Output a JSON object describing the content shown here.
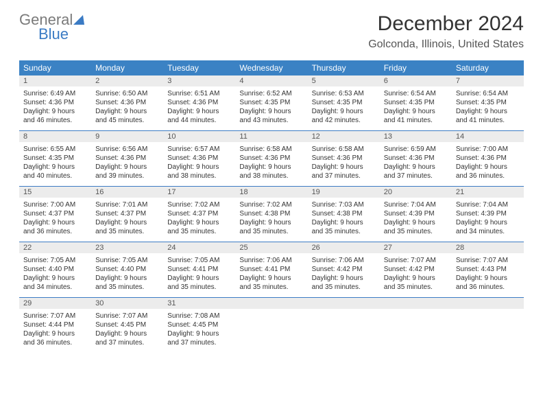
{
  "logo": {
    "word1": "General",
    "word2": "Blue"
  },
  "title": "December 2024",
  "location": "Golconda, Illinois, United States",
  "colors": {
    "header_bg": "#3b82c4",
    "header_text": "#ffffff",
    "daynum_bg": "#ececec",
    "border": "#3b7bc4",
    "logo_gray": "#7a7a7a",
    "logo_blue": "#3b7bc4"
  },
  "day_names": [
    "Sunday",
    "Monday",
    "Tuesday",
    "Wednesday",
    "Thursday",
    "Friday",
    "Saturday"
  ],
  "weeks": [
    [
      {
        "n": "1",
        "sunrise": "Sunrise: 6:49 AM",
        "sunset": "Sunset: 4:36 PM",
        "d1": "Daylight: 9 hours",
        "d2": "and 46 minutes."
      },
      {
        "n": "2",
        "sunrise": "Sunrise: 6:50 AM",
        "sunset": "Sunset: 4:36 PM",
        "d1": "Daylight: 9 hours",
        "d2": "and 45 minutes."
      },
      {
        "n": "3",
        "sunrise": "Sunrise: 6:51 AM",
        "sunset": "Sunset: 4:36 PM",
        "d1": "Daylight: 9 hours",
        "d2": "and 44 minutes."
      },
      {
        "n": "4",
        "sunrise": "Sunrise: 6:52 AM",
        "sunset": "Sunset: 4:35 PM",
        "d1": "Daylight: 9 hours",
        "d2": "and 43 minutes."
      },
      {
        "n": "5",
        "sunrise": "Sunrise: 6:53 AM",
        "sunset": "Sunset: 4:35 PM",
        "d1": "Daylight: 9 hours",
        "d2": "and 42 minutes."
      },
      {
        "n": "6",
        "sunrise": "Sunrise: 6:54 AM",
        "sunset": "Sunset: 4:35 PM",
        "d1": "Daylight: 9 hours",
        "d2": "and 41 minutes."
      },
      {
        "n": "7",
        "sunrise": "Sunrise: 6:54 AM",
        "sunset": "Sunset: 4:35 PM",
        "d1": "Daylight: 9 hours",
        "d2": "and 41 minutes."
      }
    ],
    [
      {
        "n": "8",
        "sunrise": "Sunrise: 6:55 AM",
        "sunset": "Sunset: 4:35 PM",
        "d1": "Daylight: 9 hours",
        "d2": "and 40 minutes."
      },
      {
        "n": "9",
        "sunrise": "Sunrise: 6:56 AM",
        "sunset": "Sunset: 4:36 PM",
        "d1": "Daylight: 9 hours",
        "d2": "and 39 minutes."
      },
      {
        "n": "10",
        "sunrise": "Sunrise: 6:57 AM",
        "sunset": "Sunset: 4:36 PM",
        "d1": "Daylight: 9 hours",
        "d2": "and 38 minutes."
      },
      {
        "n": "11",
        "sunrise": "Sunrise: 6:58 AM",
        "sunset": "Sunset: 4:36 PM",
        "d1": "Daylight: 9 hours",
        "d2": "and 38 minutes."
      },
      {
        "n": "12",
        "sunrise": "Sunrise: 6:58 AM",
        "sunset": "Sunset: 4:36 PM",
        "d1": "Daylight: 9 hours",
        "d2": "and 37 minutes."
      },
      {
        "n": "13",
        "sunrise": "Sunrise: 6:59 AM",
        "sunset": "Sunset: 4:36 PM",
        "d1": "Daylight: 9 hours",
        "d2": "and 37 minutes."
      },
      {
        "n": "14",
        "sunrise": "Sunrise: 7:00 AM",
        "sunset": "Sunset: 4:36 PM",
        "d1": "Daylight: 9 hours",
        "d2": "and 36 minutes."
      }
    ],
    [
      {
        "n": "15",
        "sunrise": "Sunrise: 7:00 AM",
        "sunset": "Sunset: 4:37 PM",
        "d1": "Daylight: 9 hours",
        "d2": "and 36 minutes."
      },
      {
        "n": "16",
        "sunrise": "Sunrise: 7:01 AM",
        "sunset": "Sunset: 4:37 PM",
        "d1": "Daylight: 9 hours",
        "d2": "and 35 minutes."
      },
      {
        "n": "17",
        "sunrise": "Sunrise: 7:02 AM",
        "sunset": "Sunset: 4:37 PM",
        "d1": "Daylight: 9 hours",
        "d2": "and 35 minutes."
      },
      {
        "n": "18",
        "sunrise": "Sunrise: 7:02 AM",
        "sunset": "Sunset: 4:38 PM",
        "d1": "Daylight: 9 hours",
        "d2": "and 35 minutes."
      },
      {
        "n": "19",
        "sunrise": "Sunrise: 7:03 AM",
        "sunset": "Sunset: 4:38 PM",
        "d1": "Daylight: 9 hours",
        "d2": "and 35 minutes."
      },
      {
        "n": "20",
        "sunrise": "Sunrise: 7:04 AM",
        "sunset": "Sunset: 4:39 PM",
        "d1": "Daylight: 9 hours",
        "d2": "and 35 minutes."
      },
      {
        "n": "21",
        "sunrise": "Sunrise: 7:04 AM",
        "sunset": "Sunset: 4:39 PM",
        "d1": "Daylight: 9 hours",
        "d2": "and 34 minutes."
      }
    ],
    [
      {
        "n": "22",
        "sunrise": "Sunrise: 7:05 AM",
        "sunset": "Sunset: 4:40 PM",
        "d1": "Daylight: 9 hours",
        "d2": "and 34 minutes."
      },
      {
        "n": "23",
        "sunrise": "Sunrise: 7:05 AM",
        "sunset": "Sunset: 4:40 PM",
        "d1": "Daylight: 9 hours",
        "d2": "and 35 minutes."
      },
      {
        "n": "24",
        "sunrise": "Sunrise: 7:05 AM",
        "sunset": "Sunset: 4:41 PM",
        "d1": "Daylight: 9 hours",
        "d2": "and 35 minutes."
      },
      {
        "n": "25",
        "sunrise": "Sunrise: 7:06 AM",
        "sunset": "Sunset: 4:41 PM",
        "d1": "Daylight: 9 hours",
        "d2": "and 35 minutes."
      },
      {
        "n": "26",
        "sunrise": "Sunrise: 7:06 AM",
        "sunset": "Sunset: 4:42 PM",
        "d1": "Daylight: 9 hours",
        "d2": "and 35 minutes."
      },
      {
        "n": "27",
        "sunrise": "Sunrise: 7:07 AM",
        "sunset": "Sunset: 4:42 PM",
        "d1": "Daylight: 9 hours",
        "d2": "and 35 minutes."
      },
      {
        "n": "28",
        "sunrise": "Sunrise: 7:07 AM",
        "sunset": "Sunset: 4:43 PM",
        "d1": "Daylight: 9 hours",
        "d2": "and 36 minutes."
      }
    ],
    [
      {
        "n": "29",
        "sunrise": "Sunrise: 7:07 AM",
        "sunset": "Sunset: 4:44 PM",
        "d1": "Daylight: 9 hours",
        "d2": "and 36 minutes."
      },
      {
        "n": "30",
        "sunrise": "Sunrise: 7:07 AM",
        "sunset": "Sunset: 4:45 PM",
        "d1": "Daylight: 9 hours",
        "d2": "and 37 minutes."
      },
      {
        "n": "31",
        "sunrise": "Sunrise: 7:08 AM",
        "sunset": "Sunset: 4:45 PM",
        "d1": "Daylight: 9 hours",
        "d2": "and 37 minutes."
      },
      null,
      null,
      null,
      null
    ]
  ]
}
